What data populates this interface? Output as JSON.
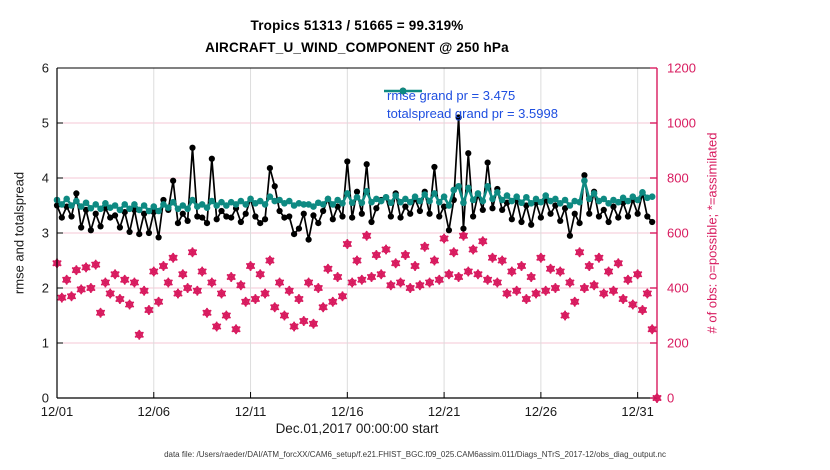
{
  "header": {
    "title_line1": "Tropics 51313 / 51665 = 99.319%",
    "title_line2": "AIRCRAFT_U_WIND_COMPONENT @ 250 hPa"
  },
  "legend": {
    "text_color": "#1e4ee0",
    "entries": [
      {
        "label": "rmse grand pr = 3.475",
        "color": "#000000"
      },
      {
        "label": "totalspread grand pr = 3.5998",
        "color": "#0e8a82"
      }
    ]
  },
  "footer": {
    "data_file_note": "data file: /Users/raeder/DAI/ATM_forcXX/CAM6_setup/f.e21.FHIST_BGC.f09_025.CAM6assim.011/Diags_NTrS_2017-12/obs_diag_output.nc"
  },
  "chart_data": {
    "type": "line",
    "title": "Tropics 51313 / 51665 = 99.319% — AIRCRAFT_U_WIND_COMPONENT @ 250 hPa",
    "sample_interval_days": 0.25,
    "x_axis": {
      "label": "Dec.01,2017 00:00:00 start",
      "tick_labels": [
        "12/01",
        "12/06",
        "12/11",
        "12/16",
        "12/21",
        "12/26",
        "12/31"
      ],
      "tick_days": [
        0,
        5,
        10,
        15,
        20,
        25,
        30
      ],
      "range_days": [
        0,
        31
      ]
    },
    "y_left": {
      "label": "rmse and totalspread",
      "ticks": [
        0,
        1,
        2,
        3,
        4,
        5,
        6
      ],
      "range": [
        0,
        6
      ],
      "color": "#1a1a1a"
    },
    "y_right": {
      "label": "# of obs: o=possible; *=assimilated",
      "ticks": [
        0,
        200,
        400,
        600,
        800,
        1000,
        1200
      ],
      "range": [
        0,
        1200
      ],
      "color": "#d81b5f"
    },
    "grid": {
      "horizontal_color": "#f5c7d5",
      "vertical_color": "#dcdcdc"
    },
    "series": [
      {
        "name": "rmse",
        "axis": "left",
        "color": "#000000",
        "marker": "circle",
        "line_width": 1.7,
        "grand_pr": 3.475,
        "values": [
          3.5,
          3.28,
          3.48,
          3.3,
          3.72,
          3.1,
          3.42,
          3.05,
          3.35,
          3.12,
          3.45,
          3.28,
          3.32,
          3.1,
          3.38,
          3.02,
          3.42,
          2.98,
          3.35,
          3.0,
          3.38,
          2.92,
          3.6,
          3.42,
          3.95,
          3.18,
          3.35,
          3.22,
          4.55,
          3.3,
          3.28,
          3.18,
          4.35,
          3.25,
          3.4,
          3.3,
          3.28,
          3.45,
          3.2,
          3.35,
          3.62,
          3.3,
          3.18,
          3.25,
          4.18,
          3.85,
          3.4,
          3.28,
          3.3,
          2.98,
          3.08,
          3.35,
          2.88,
          3.32,
          3.18,
          3.4,
          3.62,
          3.25,
          3.48,
          3.3,
          4.3,
          3.28,
          3.75,
          3.35,
          4.25,
          3.2,
          3.45,
          3.6,
          3.65,
          3.3,
          3.72,
          3.28,
          3.48,
          3.35,
          3.62,
          3.4,
          3.75,
          3.35,
          4.2,
          3.3,
          3.48,
          3.05,
          3.6,
          5.1,
          3.08,
          4.45,
          3.3,
          3.7,
          3.42,
          4.28,
          3.45,
          3.8,
          3.42,
          3.55,
          3.25,
          3.6,
          3.2,
          3.5,
          3.15,
          3.55,
          3.28,
          3.6,
          3.35,
          3.5,
          3.22,
          3.45,
          2.95,
          3.35,
          3.18,
          4.05,
          3.35,
          3.75,
          3.3,
          3.42,
          3.2,
          3.48,
          3.28,
          3.55,
          3.3,
          3.6,
          3.35,
          3.72,
          3.3,
          3.2
        ]
      },
      {
        "name": "totalspread",
        "axis": "left",
        "color": "#0e8a82",
        "marker": "circle",
        "line_width": 2.6,
        "grand_pr": 3.5998,
        "values": [
          3.6,
          3.52,
          3.62,
          3.5,
          3.58,
          3.48,
          3.55,
          3.45,
          3.52,
          3.44,
          3.54,
          3.46,
          3.5,
          3.42,
          3.52,
          3.44,
          3.52,
          3.42,
          3.5,
          3.4,
          3.48,
          3.4,
          3.52,
          3.46,
          3.56,
          3.44,
          3.5,
          3.44,
          3.6,
          3.48,
          3.52,
          3.46,
          3.58,
          3.5,
          3.56,
          3.5,
          3.56,
          3.52,
          3.58,
          3.52,
          3.62,
          3.54,
          3.58,
          3.52,
          3.66,
          3.58,
          3.6,
          3.54,
          3.58,
          3.5,
          3.54,
          3.52,
          3.52,
          3.48,
          3.55,
          3.52,
          3.62,
          3.52,
          3.6,
          3.54,
          3.72,
          3.55,
          3.65,
          3.55,
          3.76,
          3.56,
          3.62,
          3.58,
          3.65,
          3.55,
          3.68,
          3.56,
          3.62,
          3.56,
          3.66,
          3.58,
          3.7,
          3.58,
          3.72,
          3.56,
          3.66,
          3.5,
          3.78,
          3.85,
          3.55,
          3.82,
          3.6,
          3.72,
          3.58,
          3.85,
          3.62,
          3.74,
          3.6,
          3.68,
          3.58,
          3.66,
          3.55,
          3.65,
          3.54,
          3.62,
          3.56,
          3.68,
          3.58,
          3.62,
          3.54,
          3.6,
          3.5,
          3.58,
          3.56,
          3.95,
          3.62,
          3.72,
          3.58,
          3.62,
          3.54,
          3.6,
          3.56,
          3.64,
          3.58,
          3.66,
          3.6,
          3.74,
          3.64,
          3.66
        ]
      },
      {
        "name": "obs_possible_and_assimilated",
        "axis": "right",
        "color": "#d81b5f",
        "marker": "o-and-asterisk",
        "values": [
          490,
          365,
          430,
          370,
          465,
          395,
          475,
          400,
          485,
          310,
          420,
          380,
          450,
          360,
          430,
          340,
          420,
          230,
          390,
          320,
          460,
          350,
          480,
          420,
          510,
          380,
          450,
          400,
          530,
          390,
          460,
          310,
          420,
          260,
          380,
          300,
          440,
          250,
          410,
          350,
          480,
          360,
          450,
          380,
          500,
          330,
          420,
          300,
          390,
          260,
          360,
          280,
          420,
          270,
          400,
          330,
          470,
          350,
          440,
          370,
          560,
          420,
          500,
          430,
          590,
          440,
          520,
          450,
          540,
          410,
          490,
          420,
          520,
          400,
          480,
          410,
          550,
          420,
          500,
          430,
          580,
          450,
          530,
          440,
          590,
          460,
          540,
          450,
          570,
          430,
          510,
          420,
          500,
          380,
          460,
          390,
          480,
          360,
          440,
          380,
          510,
          390,
          470,
          400,
          460,
          300,
          420,
          350,
          530,
          400,
          480,
          410,
          510,
          380,
          460,
          390,
          490,
          360,
          430,
          340,
          450,
          320,
          380,
          250,
          0
        ]
      }
    ]
  }
}
